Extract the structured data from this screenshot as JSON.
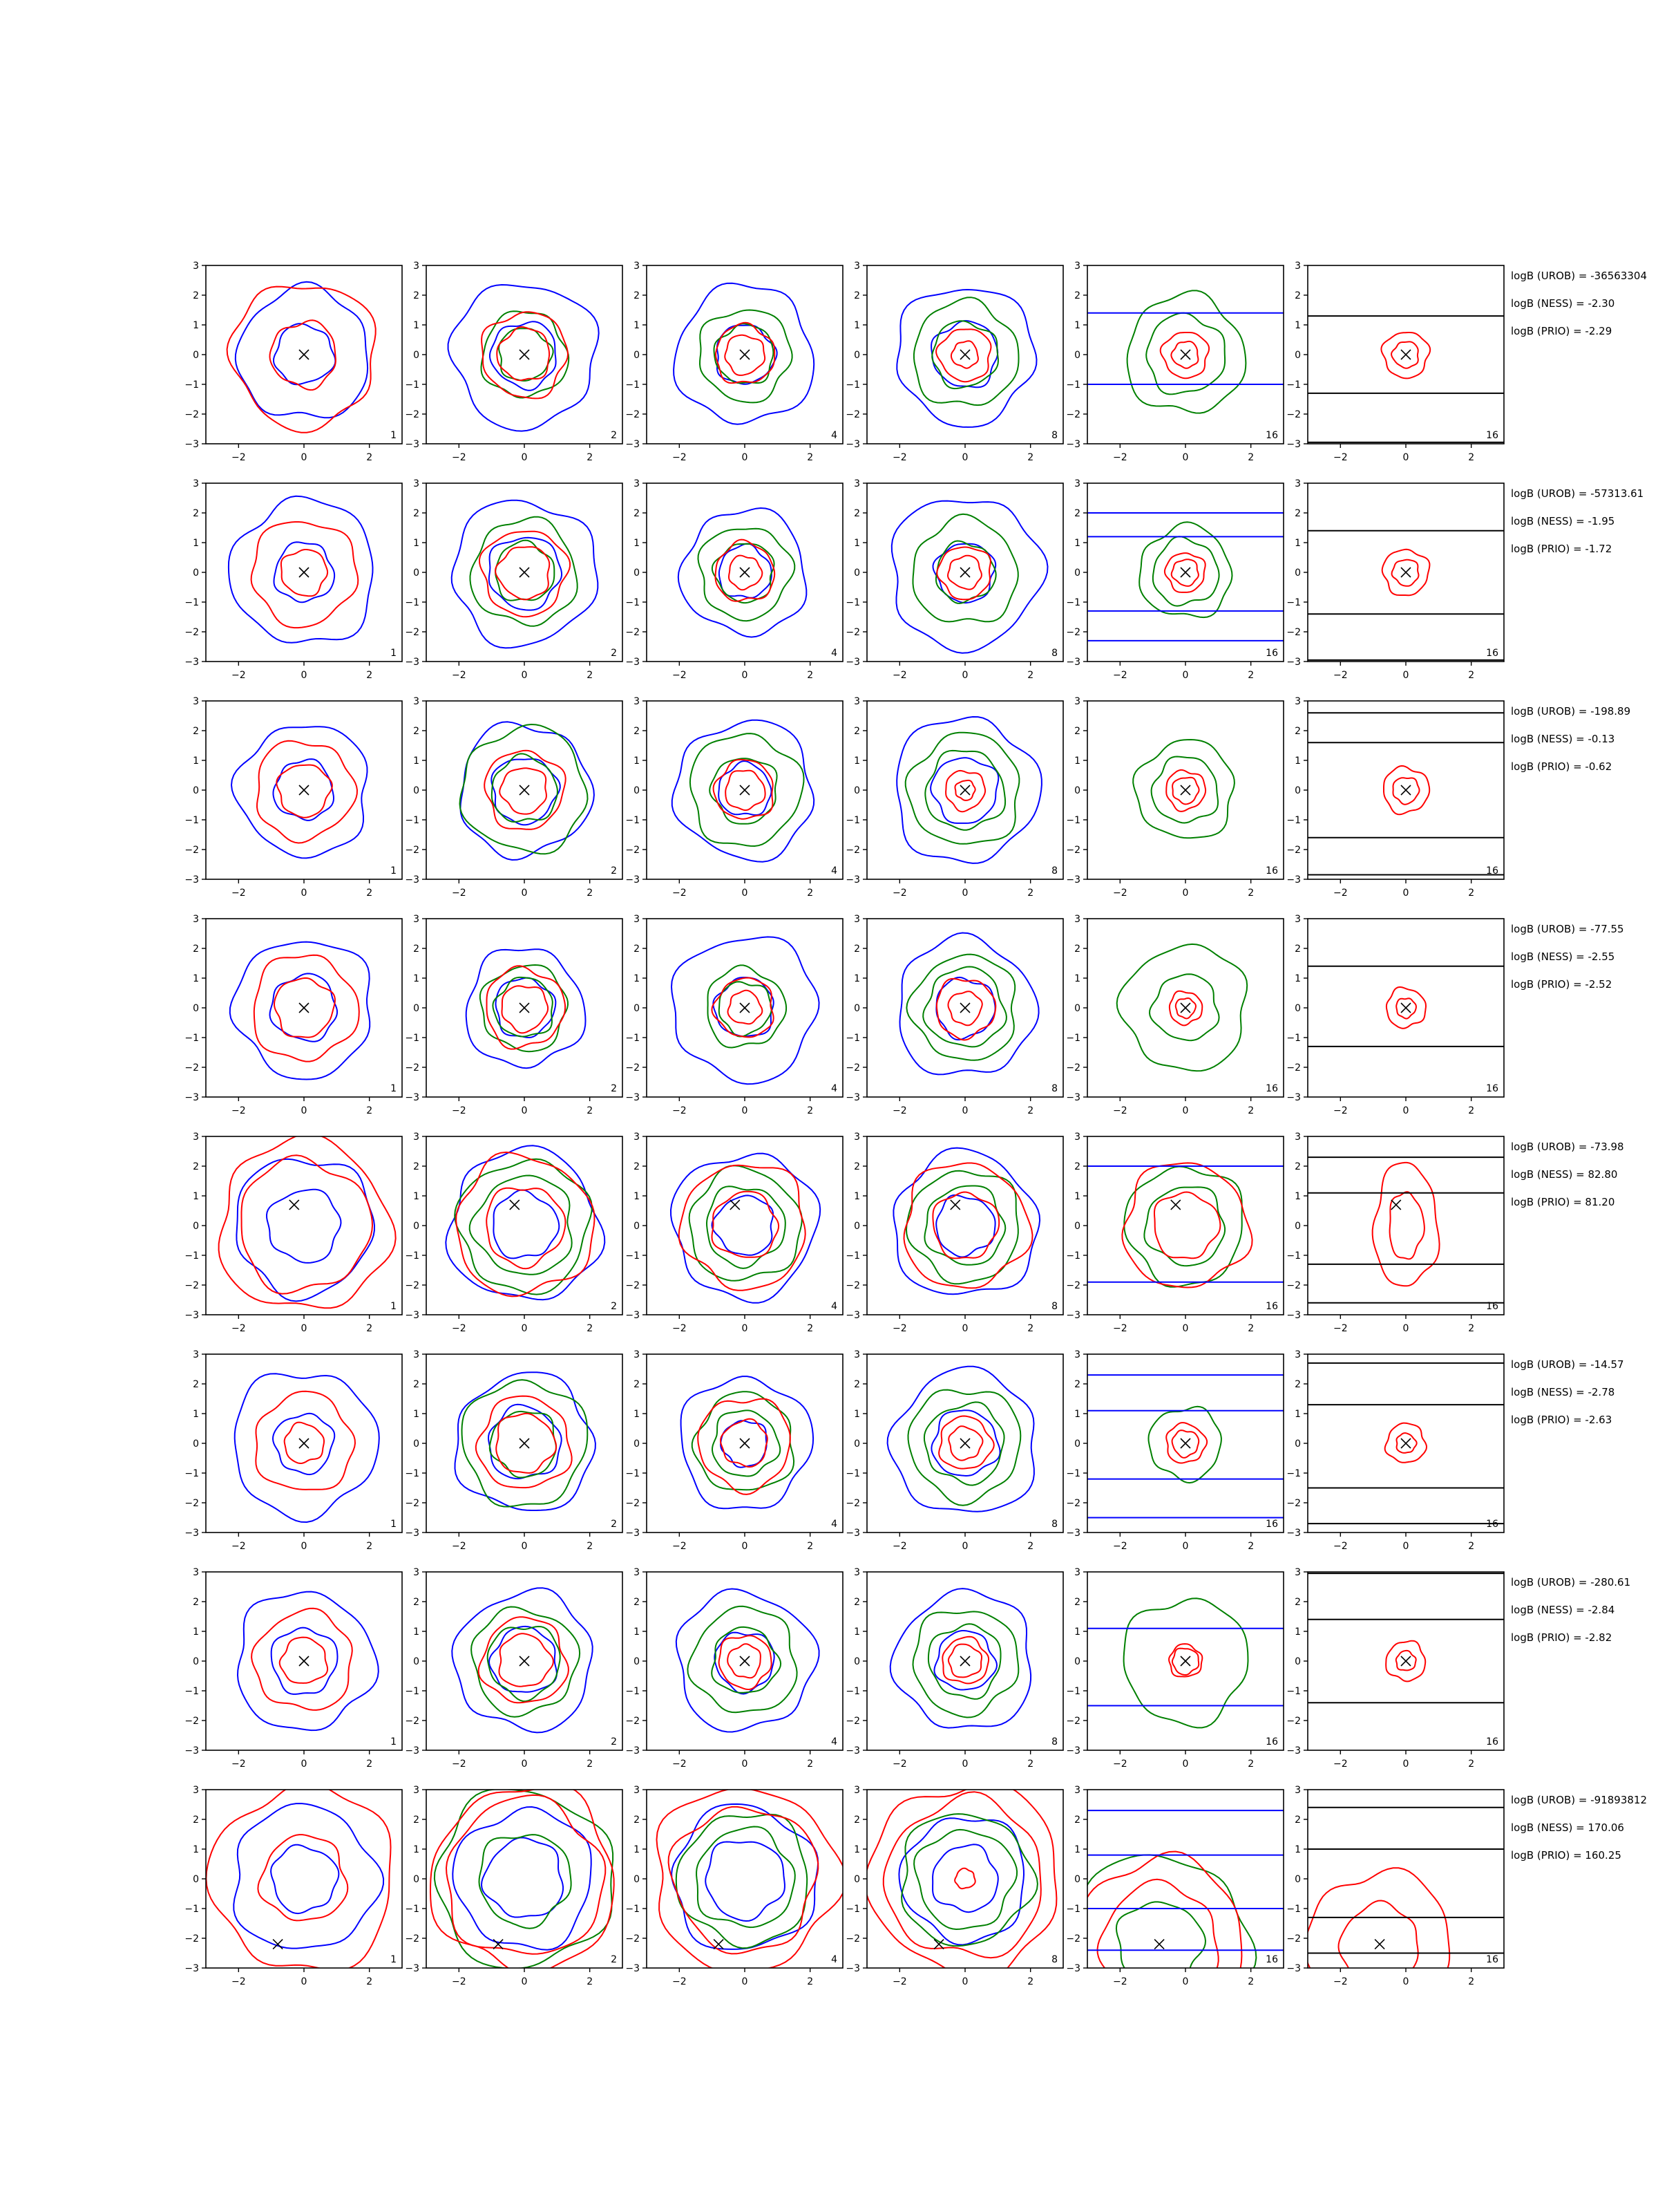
{
  "chart_data": {
    "type": "contour",
    "grid": false,
    "xlim": [
      -3,
      3
    ],
    "ylim": [
      -3,
      3
    ],
    "xticks": [
      -2,
      0,
      2
    ],
    "yticks": [
      3,
      2,
      1,
      0,
      -1,
      -2,
      -3
    ],
    "column_labels": [
      "1",
      "2",
      "4",
      "8",
      "16",
      "16"
    ],
    "colors": {
      "red": "#ff0000",
      "blue": "#0000ff",
      "green": "#008000",
      "black": "#000000"
    },
    "rows": [
      {
        "x_marker": [
          0,
          0
        ],
        "annotations": [
          "logB (UROB) = -36563304",
          "logB (NESS) = -2.30",
          "logB (PRIO) = -2.29"
        ],
        "panels": [
          {
            "red": [
              1.0,
              2.2
            ],
            "blue": [
              0.9,
              2.0
            ],
            "green": []
          },
          {
            "red": [
              0.8,
              1.3
            ],
            "blue": [
              1.0,
              2.2
            ],
            "green": [
              0.8,
              1.3
            ]
          },
          {
            "red": [
              0.6,
              0.9
            ],
            "blue": [
              0.9,
              2.1
            ],
            "green": [
              0.9,
              1.4
            ]
          },
          {
            "red": [
              0.4,
              0.8
            ],
            "blue": [
              1.0,
              2.1
            ],
            "green": [
              1.0,
              1.6
            ]
          },
          {
            "red": [
              0.4,
              0.7
            ],
            "blue": [],
            "green": [
              1.2,
              1.8
            ],
            "hlines": [
              1.4,
              -1.0
            ]
          },
          {
            "red": [
              0.4,
              0.7
            ],
            "blue": [],
            "green": [],
            "hlines_black": [
              1.3,
              -1.3,
              -2.95
            ]
          }
        ]
      },
      {
        "x_marker": [
          0,
          0
        ],
        "annotations": [
          "logB (UROB) = -57313.61",
          "logB (NESS) = -1.95",
          "logB (PRIO) = -1.72"
        ],
        "panels": [
          {
            "red": [
              0.7,
              1.6
            ],
            "blue": [
              0.9,
              2.2
            ],
            "green": []
          },
          {
            "red": [
              0.8,
              1.3
            ],
            "blue": [
              1.1,
              2.2
            ],
            "green": [
              0.9,
              1.6
            ]
          },
          {
            "red": [
              0.5,
              0.9
            ],
            "blue": [
              0.8,
              1.9
            ],
            "green": [
              0.9,
              1.4
            ]
          },
          {
            "red": [
              0.5,
              0.8
            ],
            "blue": [
              0.9,
              2.3
            ],
            "green": [
              0.9,
              1.6
            ]
          },
          {
            "red": [
              0.4,
              0.6
            ],
            "blue": [],
            "green": [
              1.0,
              1.4
            ],
            "hlines": [
              2.0,
              1.2,
              -1.3,
              -2.3
            ]
          },
          {
            "red": [
              0.4,
              0.7
            ],
            "blue": [],
            "green": [],
            "hlines_black": [
              1.4,
              -1.4,
              -2.95
            ]
          }
        ]
      },
      {
        "x_marker": [
          0,
          0
        ],
        "annotations": [
          "logB (UROB) = -198.89",
          "logB (NESS) = -0.13",
          "logB (PRIO) = -0.62"
        ],
        "panels": [
          {
            "red": [
              0.8,
              1.5
            ],
            "blue": [
              0.9,
              2.0
            ],
            "green": []
          },
          {
            "red": [
              0.7,
              1.2
            ],
            "blue": [
              1.0,
              2.0
            ],
            "green": [
              1.0,
              1.9
            ]
          },
          {
            "red": [
              0.6,
              0.9
            ],
            "blue": [
              0.8,
              2.1
            ],
            "green": [
              1.0,
              1.7
            ]
          },
          {
            "red": [
              0.3,
              0.6
            ],
            "blue": [
              1.0,
              2.2
            ],
            "green": [
              1.2,
              1.7
            ]
          },
          {
            "red": [
              0.4,
              0.6
            ],
            "blue": [],
            "green": [
              1.0,
              1.5
            ]
          },
          {
            "red": [
              0.4,
              0.7
            ],
            "blue": [],
            "green": [],
            "hlines_black": [
              2.6,
              1.6,
              -1.6,
              -2.85
            ]
          }
        ]
      },
      {
        "x_marker": [
          0,
          0
        ],
        "annotations": [
          "logB (UROB) = -77.55",
          "logB (NESS) = -2.55",
          "logB (PRIO) = -2.52"
        ],
        "panels": [
          {
            "red": [
              0.9,
              1.6
            ],
            "blue": [
              1.0,
              2.1
            ],
            "green": []
          },
          {
            "red": [
              0.7,
              1.2
            ],
            "blue": [
              0.9,
              1.8
            ],
            "green": [
              0.9,
              1.3
            ]
          },
          {
            "red": [
              0.5,
              0.9
            ],
            "blue": [
              0.9,
              2.2
            ],
            "green": [
              0.8,
              1.2
            ]
          },
          {
            "red": [
              0.5,
              0.9
            ],
            "blue": [
              0.9,
              2.1
            ],
            "green": [
              1.2,
              1.6
            ]
          },
          {
            "red": [
              0.3,
              0.5
            ],
            "blue": [],
            "green": [
              1.0,
              1.9
            ]
          },
          {
            "red": [
              0.3,
              0.6
            ],
            "blue": [],
            "green": [],
            "hlines_black": [
              1.4,
              -1.3
            ]
          }
        ]
      },
      {
        "x_marker": [
          -0.3,
          0.7
        ],
        "annotations": [
          "logB (UROB) = -73.98",
          "logB (NESS) = 82.80",
          "logB (PRIO) = 81.20"
        ],
        "panels": [
          {
            "red": [
              2.0,
              2.6
            ],
            "blue": [
              1.1,
              2.1
            ],
            "green": []
          },
          {
            "red": [
              1.2,
              2.1
            ],
            "blue": [
              1.0,
              2.3
            ],
            "green": [
              1.5,
              2.0
            ]
          },
          {
            "red": [
              1.0,
              1.9
            ],
            "blue": [
              0.9,
              2.2
            ],
            "green": [
              1.2,
              1.7
            ]
          },
          {
            "red": [
              1.0,
              1.9
            ],
            "blue": [
              0.9,
              2.2
            ],
            "green": [
              1.2,
              1.7
            ]
          },
          {
            "red": [
              1.0,
              1.9
            ],
            "blue": [],
            "green": [
              1.2,
              1.8
            ],
            "hlines": [
              2.0,
              -1.9
            ]
          },
          {
            "red": [
              0.7,
              1.3
            ],
            "blue": [],
            "green": [],
            "hlines_black": [
              2.3,
              1.1,
              -1.3,
              -2.6
            ]
          }
        ]
      },
      {
        "x_marker": [
          0,
          0
        ],
        "annotations": [
          "logB (UROB) = -14.57",
          "logB (NESS) = -2.78",
          "logB (PRIO) = -2.63"
        ],
        "panels": [
          {
            "red": [
              0.6,
              1.5
            ],
            "blue": [
              0.9,
              2.2
            ],
            "green": []
          },
          {
            "red": [
              0.9,
              1.4
            ],
            "blue": [
              1.1,
              2.1
            ],
            "green": [
              1.0,
              1.9
            ]
          },
          {
            "red": [
              0.7,
              1.4
            ],
            "blue": [
              0.7,
              2.0
            ],
            "green": [
              1.0,
              1.5
            ]
          },
          {
            "red": [
              0.5,
              0.8
            ],
            "blue": [
              1.0,
              2.2
            ],
            "green": [
              1.2,
              1.7
            ]
          },
          {
            "red": [
              0.4,
              0.6
            ],
            "blue": [],
            "green": [
              1.1
            ],
            "hlines": [
              2.3,
              1.1,
              -1.2,
              -2.5
            ]
          },
          {
            "red": [
              0.3,
              0.6
            ],
            "blue": [],
            "green": [],
            "hlines_black": [
              2.7,
              1.3,
              -1.5,
              -2.7
            ]
          }
        ]
      },
      {
        "x_marker": [
          0,
          0
        ],
        "annotations": [
          "logB (UROB) = -280.61",
          "logB (NESS) = -2.84",
          "logB (PRIO) = -2.82"
        ],
        "panels": [
          {
            "red": [
              0.7,
              1.5
            ],
            "blue": [
              1.0,
              2.1
            ],
            "green": []
          },
          {
            "red": [
              0.8,
              1.3
            ],
            "blue": [
              1.0,
              2.1
            ],
            "green": [
              1.1,
              1.6
            ]
          },
          {
            "red": [
              0.5,
              0.8
            ],
            "blue": [
              0.9,
              2.1
            ],
            "green": [
              1.0,
              1.6
            ]
          },
          {
            "red": [
              0.5,
              0.7
            ],
            "blue": [
              0.9,
              2.1
            ],
            "green": [
              1.1,
              1.6
            ]
          },
          {
            "red": [
              0.4,
              0.5
            ],
            "blue": [],
            "green": [
              1.9
            ],
            "hlines": [
              1.1,
              -1.5
            ]
          },
          {
            "red": [
              0.3,
              0.6
            ],
            "blue": [],
            "green": [],
            "hlines_black": [
              2.95,
              1.4,
              -1.4
            ]
          }
        ]
      },
      {
        "x_marker": [
          -0.8,
          -2.2
        ],
        "annotations": [
          "logB (UROB) = -91893812",
          "logB (NESS) = 170.06",
          "logB (PRIO) = 160.25"
        ],
        "panels": [
          {
            "red": [
              1.3,
              2.8
            ],
            "blue": [
              1.0,
              2.2
            ],
            "green": []
          },
          {
            "red": [
              2.4,
              2.8
            ],
            "blue": [
              1.2,
              2.1
            ],
            "green": [
              1.4,
              2.7
            ]
          },
          {
            "red": [
              2.2,
              2.8
            ],
            "blue": [
              1.2,
              2.2
            ],
            "green": [
              1.5,
              2.0
            ]
          },
          {
            "red": [
              0.3,
              2.4,
              2.9
            ],
            "blue": [
              1.0,
              1.9
            ],
            "green": [
              1.5,
              2.0
            ]
          },
          {
            "red": [
              1.8,
              2.6
            ],
            "blue": [],
            "green": [
              1.3,
              2.7
            ],
            "hlines": [
              2.3,
              0.8,
              -1.0,
              -2.4
            ]
          },
          {
            "red": [
              1.2,
              2.2
            ],
            "blue": [],
            "green": [],
            "hlines_black": [
              2.4,
              1.0,
              -1.3,
              -2.5
            ]
          }
        ]
      }
    ]
  }
}
